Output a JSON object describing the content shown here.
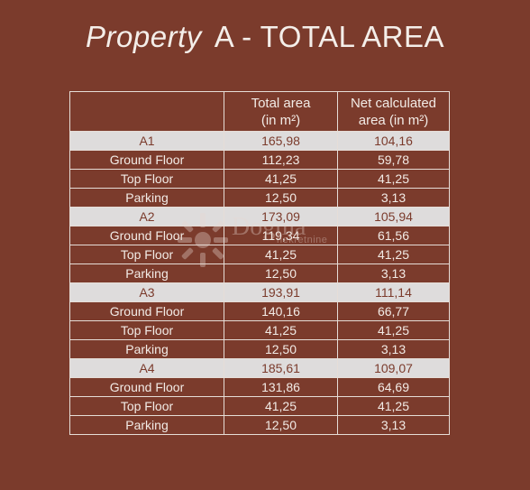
{
  "title": {
    "prefix": "Property",
    "rest": "A - TOTAL AREA"
  },
  "table": {
    "headers": [
      "",
      "Total area\n(in m²)",
      "Net calculated\narea (in m²)"
    ],
    "header_lines": {
      "total_1": "Total area",
      "total_2": "(in m²)",
      "net_1": "Net calculated",
      "net_2": "area (in m²)"
    },
    "groups": [
      {
        "name": "A1",
        "total": "165,98",
        "net": "104,16",
        "rows": [
          {
            "name": "Ground Floor",
            "total": "112,23",
            "net": "59,78"
          },
          {
            "name": "Top Floor",
            "total": "41,25",
            "net": "41,25"
          },
          {
            "name": "Parking",
            "total": "12,50",
            "net": "3,13"
          }
        ]
      },
      {
        "name": "A2",
        "total": "173,09",
        "net": "105,94",
        "rows": [
          {
            "name": "Ground Floor",
            "total": "119,34",
            "net": "61,56"
          },
          {
            "name": "Top Floor",
            "total": "41,25",
            "net": "41,25"
          },
          {
            "name": "Parking",
            "total": "12,50",
            "net": "3,13"
          }
        ]
      },
      {
        "name": "A3",
        "total": "193,91",
        "net": "111,14",
        "rows": [
          {
            "name": "Ground Floor",
            "total": "140,16",
            "net": "66,77"
          },
          {
            "name": "Top Floor",
            "total": "41,25",
            "net": "41,25"
          },
          {
            "name": "Parking",
            "total": "12,50",
            "net": "3,13"
          }
        ]
      },
      {
        "name": "A4",
        "total": "185,61",
        "net": "109,07",
        "rows": [
          {
            "name": "Ground Floor",
            "total": "131,86",
            "net": "64,69"
          },
          {
            "name": "Top Floor",
            "total": "41,25",
            "net": "41,25"
          },
          {
            "name": "Parking",
            "total": "12,50",
            "net": "3,13"
          }
        ]
      }
    ]
  },
  "watermark": {
    "brand": "Dogma",
    "sub": "nekretnine"
  },
  "colors": {
    "background": "#7b3b2c",
    "group_row": "#dedcdc",
    "text": "#f2ebe6"
  }
}
